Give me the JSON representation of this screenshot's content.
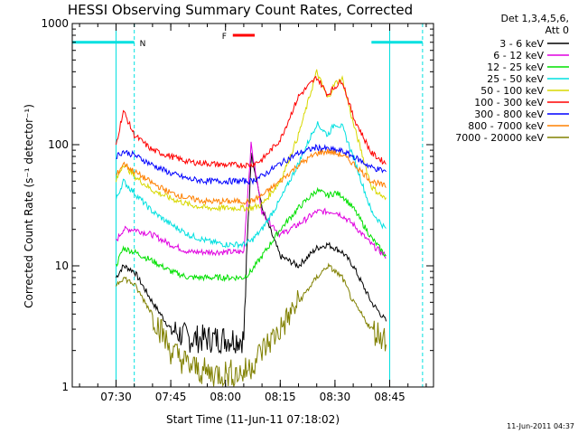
{
  "chart_data": {
    "type": "line",
    "title": "HESSI Observing Summary Count Rates, Corrected",
    "xlabel": "Start Time (11-Jun-11 07:18:02)",
    "ylabel": "Corrected Count Rate (s⁻¹ detector⁻¹)",
    "yscale": "log",
    "ylim": [
      1,
      1000
    ],
    "xlim": [
      "07:18",
      "08:57"
    ],
    "xticks": [
      "07:30",
      "07:45",
      "08:00",
      "08:15",
      "08:30",
      "08:45"
    ],
    "yticks": [
      "1",
      "10",
      "100",
      "1000"
    ],
    "legend_position": "right",
    "legend_header": [
      "Det 1,3,4,5,6,",
      "Att 0"
    ],
    "footer": "11-Jun-2011 04:37",
    "data_window": [
      "07:30",
      "08:45"
    ],
    "night_markers": [
      {
        "label": "N",
        "start": "07:18",
        "end": "07:35"
      },
      {
        "label": "",
        "start": "08:40",
        "end": "08:54"
      }
    ],
    "flare_marker": {
      "label": "F",
      "start": "08:02",
      "end": "08:08",
      "value": 800
    },
    "x": [
      "07:30",
      "07:32",
      "07:35",
      "07:40",
      "07:45",
      "07:50",
      "07:55",
      "08:00",
      "08:05",
      "08:07",
      "08:10",
      "08:15",
      "08:20",
      "08:25",
      "08:28",
      "08:30",
      "08:32",
      "08:35",
      "08:40",
      "08:44"
    ],
    "series": [
      {
        "name": "3 - 6 keV",
        "color": "#000000",
        "values": [
          8,
          10,
          9,
          5,
          3,
          2.5,
          2.5,
          2.5,
          2.5,
          90,
          30,
          12,
          10,
          14,
          15,
          14,
          13,
          10,
          5,
          3.5
        ]
      },
      {
        "name": "6 - 12 keV",
        "color": "#e000e0",
        "values": [
          16,
          20,
          20,
          18,
          15,
          13,
          13,
          13,
          13,
          100,
          28,
          18,
          22,
          28,
          28,
          28,
          26,
          22,
          15,
          12
        ]
      },
      {
        "name": "12 - 25 keV",
        "color": "#00e000",
        "values": [
          10,
          14,
          13,
          11,
          9,
          8,
          8,
          8,
          8,
          9,
          12,
          20,
          30,
          42,
          38,
          40,
          38,
          30,
          17,
          12
        ]
      },
      {
        "name": "25 - 50 keV",
        "color": "#00e0e0",
        "values": [
          35,
          50,
          40,
          28,
          22,
          18,
          16,
          15,
          15,
          16,
          20,
          35,
          70,
          150,
          120,
          150,
          140,
          80,
          28,
          20
        ]
      },
      {
        "name": "50 - 100 keV",
        "color": "#d8d800",
        "values": [
          50,
          70,
          55,
          42,
          36,
          32,
          30,
          30,
          30,
          30,
          32,
          50,
          120,
          400,
          240,
          320,
          350,
          150,
          45,
          35
        ]
      },
      {
        "name": "100 - 300 keV",
        "color": "#ff0000",
        "values": [
          100,
          190,
          120,
          90,
          80,
          72,
          70,
          68,
          68,
          68,
          75,
          110,
          250,
          360,
          260,
          300,
          340,
          170,
          85,
          70
        ]
      },
      {
        "name": "300 - 800 keV",
        "color": "#0000ff",
        "values": [
          80,
          88,
          82,
          68,
          58,
          52,
          50,
          50,
          50,
          50,
          55,
          70,
          85,
          95,
          92,
          90,
          88,
          80,
          65,
          60
        ]
      },
      {
        "name": "800 - 7000 keV",
        "color": "#ff8000",
        "values": [
          55,
          70,
          60,
          48,
          40,
          36,
          34,
          34,
          34,
          34,
          38,
          50,
          68,
          85,
          88,
          85,
          82,
          70,
          50,
          45
        ]
      },
      {
        "name": "7000 - 20000 keV",
        "color": "#808000",
        "values": [
          7,
          8,
          7,
          4,
          2,
          1.5,
          1.3,
          1.3,
          1.3,
          1.5,
          2,
          3,
          5,
          8,
          10,
          9,
          8,
          5,
          3,
          2.5
        ]
      }
    ]
  }
}
